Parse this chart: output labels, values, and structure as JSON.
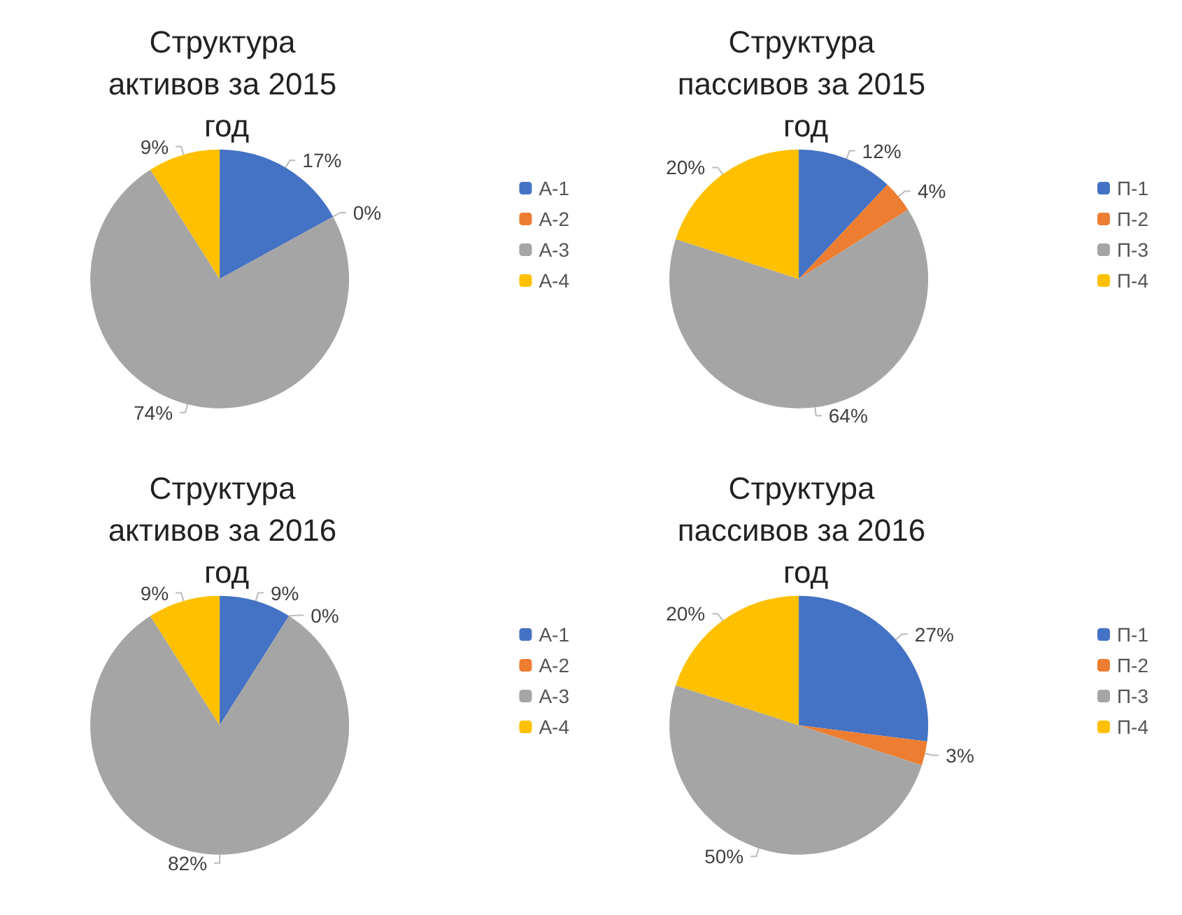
{
  "chart_data": [
    {
      "type": "pie",
      "title": "Структура активов за 2015 год",
      "categories": [
        "А-1",
        "А-2",
        "А-3",
        "А-4"
      ],
      "values": [
        17,
        0,
        74,
        9
      ],
      "value_labels": [
        "17%",
        "0%",
        "74%",
        "9%"
      ],
      "colors": [
        "#4472c4",
        "#ed7d31",
        "#a5a5a5",
        "#ffc000"
      ],
      "legend": "right"
    },
    {
      "type": "pie",
      "title": "Структура пассивов за 2015 год",
      "categories": [
        "П-1",
        "П-2",
        "П-3",
        "П-4"
      ],
      "values": [
        12,
        4,
        64,
        20
      ],
      "value_labels": [
        "12%",
        "4%",
        "64%",
        "20%"
      ],
      "colors": [
        "#4472c4",
        "#ed7d31",
        "#a5a5a5",
        "#ffc000"
      ],
      "legend": "right"
    },
    {
      "type": "pie",
      "title": "Структура активов за 2016 год",
      "categories": [
        "А-1",
        "А-2",
        "А-3",
        "А-4"
      ],
      "values": [
        9,
        0,
        82,
        9
      ],
      "value_labels": [
        "9%",
        "0%",
        "82%",
        "9%"
      ],
      "colors": [
        "#4472c4",
        "#ed7d31",
        "#a5a5a5",
        "#ffc000"
      ],
      "legend": "right"
    },
    {
      "type": "pie",
      "title": "Структура пассивов за 2016 год",
      "categories": [
        "П-1",
        "П-2",
        "П-3",
        "П-4"
      ],
      "values": [
        27,
        3,
        50,
        20
      ],
      "value_labels": [
        "27%",
        "3%",
        "50%",
        "20%"
      ],
      "colors": [
        "#4472c4",
        "#ed7d31",
        "#a5a5a5",
        "#ffc000"
      ],
      "legend": "right"
    }
  ]
}
